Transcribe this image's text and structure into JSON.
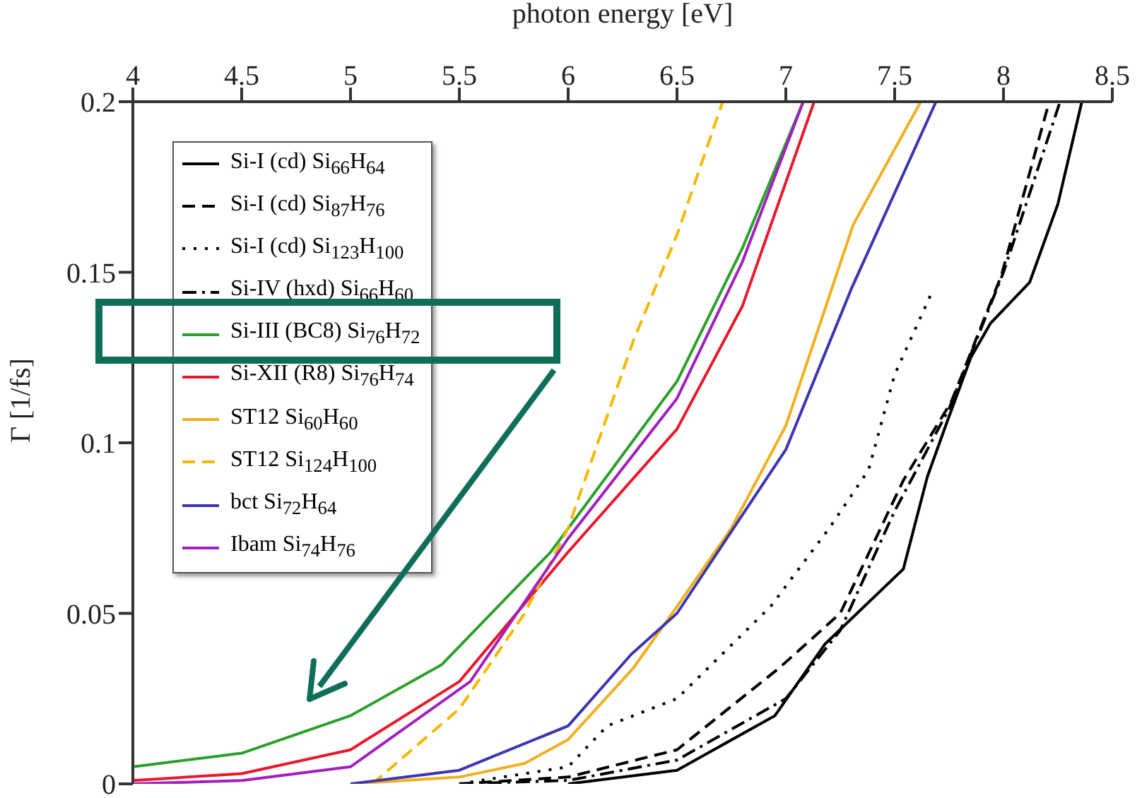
{
  "chart_data": {
    "type": "line",
    "xlabel": "photon energy [eV]",
    "ylabel": "Γ [1/fs]",
    "xlim": [
      4,
      8.5
    ],
    "xticks": [
      4,
      4.5,
      5,
      5.5,
      6,
      6.5,
      7,
      7.5,
      8,
      8.5
    ],
    "ylim": [
      0,
      0.2
    ],
    "yticks": [
      0,
      0.05,
      0.1,
      0.15,
      0.2
    ],
    "grid": false,
    "legend": "top left",
    "marker": "none",
    "series": [
      {
        "name": "Si-I (cd) Si$_{66}$H$_{64}$",
        "color": "#000000",
        "line_style": "solid",
        "x": [
          6,
          6.5,
          6.95,
          7.18,
          7.54,
          7.65,
          7.74,
          7.85,
          7.94,
          8.12,
          8.25,
          8.36
        ],
        "values": [
          0,
          0.004,
          0.02,
          0.041,
          0.063,
          0.09,
          0.106,
          0.125,
          0.135,
          0.147,
          0.17,
          0.2
        ]
      },
      {
        "name": "Si-I (cd) Si$_{87}$H$_{76}$",
        "color": "#000000",
        "line_style": "dashed",
        "x": [
          5.5,
          6,
          6.5,
          6.97,
          7.25,
          7.54,
          7.76,
          7.99,
          8.21
        ],
        "values": [
          0,
          0.002,
          0.01,
          0.034,
          0.05,
          0.089,
          0.112,
          0.149,
          0.2
        ]
      },
      {
        "name": "Si-I (cd) Si$_{123}$H$_{100}$",
        "color": "#000000",
        "line_style": "dotted",
        "x": [
          5.5,
          6,
          6.18,
          6.5,
          6.93,
          7.2,
          7.38,
          7.5,
          7.67
        ],
        "values": [
          0,
          0.005,
          0.017,
          0.025,
          0.052,
          0.075,
          0.092,
          0.12,
          0.144
        ]
      },
      {
        "name": "Si-IV (hxd) Si$_{66}$H$_{60}$",
        "color": "#000000",
        "line_style": "dashdot",
        "x": [
          5.5,
          6,
          6.5,
          7,
          7.25,
          7.5,
          7.75,
          8,
          8.26
        ],
        "values": [
          0,
          0.001,
          0.007,
          0.025,
          0.045,
          0.08,
          0.11,
          0.15,
          0.2
        ]
      },
      {
        "name": "Si-III (BC8) Si$_{76}$H$_{72}$",
        "color": "#2ca02c",
        "line_style": "solid",
        "x": [
          4,
          4.5,
          5,
          5.42,
          5.92,
          6.5,
          6.8,
          7.08
        ],
        "values": [
          0.005,
          0.009,
          0.02,
          0.035,
          0.068,
          0.118,
          0.157,
          0.2
        ]
      },
      {
        "name": "Si-XII (R8) Si$_{76}$H$_{74}$",
        "color": "#e8192c",
        "line_style": "solid",
        "x": [
          4,
          4.5,
          5,
          5.5,
          6,
          6.5,
          6.8,
          7.13
        ],
        "values": [
          0.001,
          0.003,
          0.01,
          0.03,
          0.068,
          0.104,
          0.14,
          0.2
        ]
      },
      {
        "name": "ST12 Si$_{60}$H$_{60}$",
        "color": "#f0b020",
        "line_style": "solid",
        "x": [
          5,
          5.5,
          5.8,
          6,
          6.3,
          6.5,
          6.75,
          7,
          7.31,
          7.62
        ],
        "values": [
          0,
          0.002,
          0.006,
          0.013,
          0.034,
          0.052,
          0.075,
          0.105,
          0.164,
          0.2
        ]
      },
      {
        "name": "ST12 Si$_{124}$H$_{100}$",
        "color": "#f5b800",
        "line_style": "dashed",
        "x": [
          5.1,
          5.5,
          5.8,
          6,
          6.3,
          6.5,
          6.71
        ],
        "values": [
          0,
          0.022,
          0.05,
          0.075,
          0.13,
          0.161,
          0.2
        ]
      },
      {
        "name": "bct Si$_{72}$H$_{64}$",
        "color": "#3c36b0",
        "line_style": "solid",
        "x": [
          5,
          5.5,
          6,
          6.29,
          6.5,
          7,
          7.3,
          7.69
        ],
        "values": [
          0,
          0.004,
          0.017,
          0.038,
          0.05,
          0.098,
          0.145,
          0.2
        ]
      },
      {
        "name": "Ibam Si$_{74}$H$_{76}$",
        "color": "#a020c0",
        "line_style": "solid",
        "x": [
          4,
          4.5,
          5,
          5.55,
          6,
          6.5,
          6.8,
          7.08
        ],
        "values": [
          0,
          0.001,
          0.005,
          0.03,
          0.072,
          0.113,
          0.153,
          0.2
        ]
      }
    ]
  }
}
